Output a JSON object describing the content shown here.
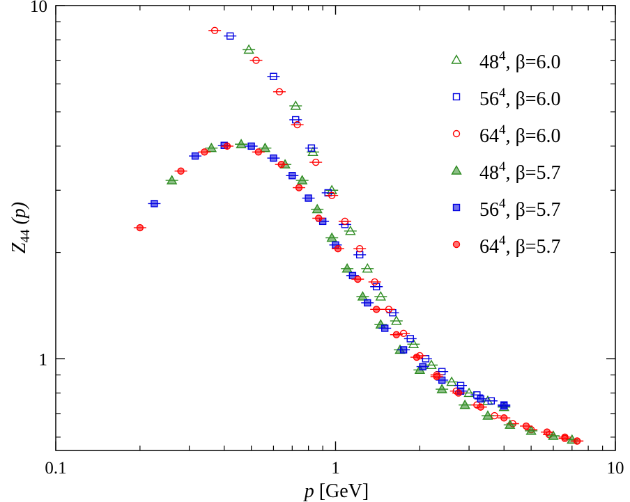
{
  "chart_data": {
    "type": "scatter",
    "xscale": "log",
    "yscale": "log",
    "xlim": [
      0.1,
      10
    ],
    "ylim": [
      0.55,
      10
    ],
    "xlabel": {
      "main": "p",
      "unit": " [GeV]"
    },
    "ylabel": {
      "base": "Z",
      "sub": "44",
      "arg": " (p)"
    },
    "xticks": [
      {
        "value": 0.1,
        "label": "0.1"
      },
      {
        "value": 1,
        "label": "1"
      },
      {
        "value": 10,
        "label": "10"
      }
    ],
    "yticks": [
      {
        "value": 1,
        "label": "1"
      },
      {
        "value": 10,
        "label": "10"
      }
    ],
    "legend_position": "top-right",
    "grid": false,
    "colors": {
      "green": "#2e8b22",
      "blue": "#0000e0",
      "red": "#ff0000"
    },
    "series": [
      {
        "name": "48^4, β=6.0",
        "lattice": "48",
        "exp": "4",
        "beta": ", β=6.0",
        "marker": "triangle",
        "filled": false,
        "color": "#2e8b22",
        "x": [
          0.49,
          0.72,
          0.83,
          0.97,
          1.13,
          1.3,
          1.45,
          1.65,
          1.9,
          2.2,
          2.6,
          3.0,
          3.5,
          4.0
        ],
        "y": [
          7.5,
          5.2,
          3.85,
          3.0,
          2.3,
          1.8,
          1.5,
          1.28,
          1.1,
          0.96,
          0.86,
          0.8,
          0.76,
          0.73
        ]
      },
      {
        "name": "56^4, β=6.0",
        "lattice": "56",
        "exp": "4",
        "beta": ", β=6.0",
        "marker": "square",
        "filled": false,
        "color": "#0000e0",
        "x": [
          0.42,
          0.6,
          0.72,
          0.82,
          0.94,
          1.08,
          1.22,
          1.4,
          1.6,
          1.85,
          2.1,
          2.4,
          2.8,
          3.2,
          3.6,
          4.0
        ],
        "y": [
          8.2,
          6.3,
          4.75,
          3.95,
          2.95,
          2.4,
          1.97,
          1.6,
          1.35,
          1.14,
          1.0,
          0.92,
          0.84,
          0.79,
          0.76,
          0.735
        ]
      },
      {
        "name": "64^4, β=6.0",
        "lattice": "64",
        "exp": "4",
        "beta": ", β=6.0",
        "marker": "circle",
        "filled": false,
        "color": "#ff0000",
        "x": [
          0.37,
          0.52,
          0.63,
          0.73,
          0.85,
          0.97,
          1.08,
          1.22,
          1.38,
          1.55,
          1.75,
          2.0,
          2.3,
          2.7,
          3.2,
          3.7,
          4.3,
          5.0,
          5.8,
          6.6,
          7.3
        ],
        "y": [
          8.5,
          7.0,
          5.7,
          4.6,
          3.6,
          2.9,
          2.45,
          2.05,
          1.65,
          1.38,
          1.18,
          1.02,
          0.9,
          0.81,
          0.74,
          0.69,
          0.655,
          0.63,
          0.61,
          0.595,
          0.585
        ]
      },
      {
        "name": "48^4, β=5.7",
        "lattice": "48",
        "exp": "4",
        "beta": ", β=5.7",
        "marker": "triangle",
        "filled": true,
        "color": "#2e8b22",
        "x": [
          0.26,
          0.36,
          0.46,
          0.56,
          0.66,
          0.76,
          0.86,
          0.97,
          1.1,
          1.25,
          1.45,
          1.7,
          2.0,
          2.4,
          2.9,
          3.5,
          4.2,
          5.0,
          6.0,
          7.0
        ],
        "y": [
          3.2,
          3.95,
          4.05,
          3.95,
          3.55,
          3.2,
          2.65,
          2.2,
          1.8,
          1.5,
          1.25,
          1.06,
          0.93,
          0.82,
          0.74,
          0.69,
          0.65,
          0.625,
          0.605,
          0.59
        ]
      },
      {
        "name": "56^4, β=5.7",
        "lattice": "56",
        "exp": "4",
        "beta": ", β=5.7",
        "marker": "square",
        "filled": true,
        "color": "#0000e0",
        "x": [
          0.225,
          0.315,
          0.4,
          0.5,
          0.6,
          0.7,
          0.8,
          0.9,
          1.0,
          1.15,
          1.3,
          1.5,
          1.75,
          2.05,
          2.4,
          2.8,
          3.3,
          4.0
        ],
        "y": [
          2.75,
          3.75,
          4.02,
          4.0,
          3.7,
          3.3,
          2.85,
          2.45,
          2.1,
          1.72,
          1.44,
          1.22,
          1.06,
          0.95,
          0.87,
          0.81,
          0.77,
          0.74
        ]
      },
      {
        "name": "64^4, β=5.7",
        "lattice": "64",
        "exp": "4",
        "beta": ", β=5.7",
        "marker": "circle",
        "filled": true,
        "color": "#ff0000",
        "x": [
          0.2,
          0.28,
          0.34,
          0.41,
          0.53,
          0.64,
          0.74,
          0.87,
          1.02,
          1.2,
          1.4,
          1.65,
          1.95,
          2.3,
          2.75,
          3.3,
          4.0,
          4.8,
          5.7,
          6.6,
          7.3
        ],
        "y": [
          2.35,
          3.4,
          3.85,
          4.0,
          3.85,
          3.55,
          3.05,
          2.5,
          2.05,
          1.68,
          1.38,
          1.17,
          1.01,
          0.89,
          0.8,
          0.73,
          0.68,
          0.645,
          0.62,
          0.6,
          0.585
        ]
      }
    ]
  }
}
